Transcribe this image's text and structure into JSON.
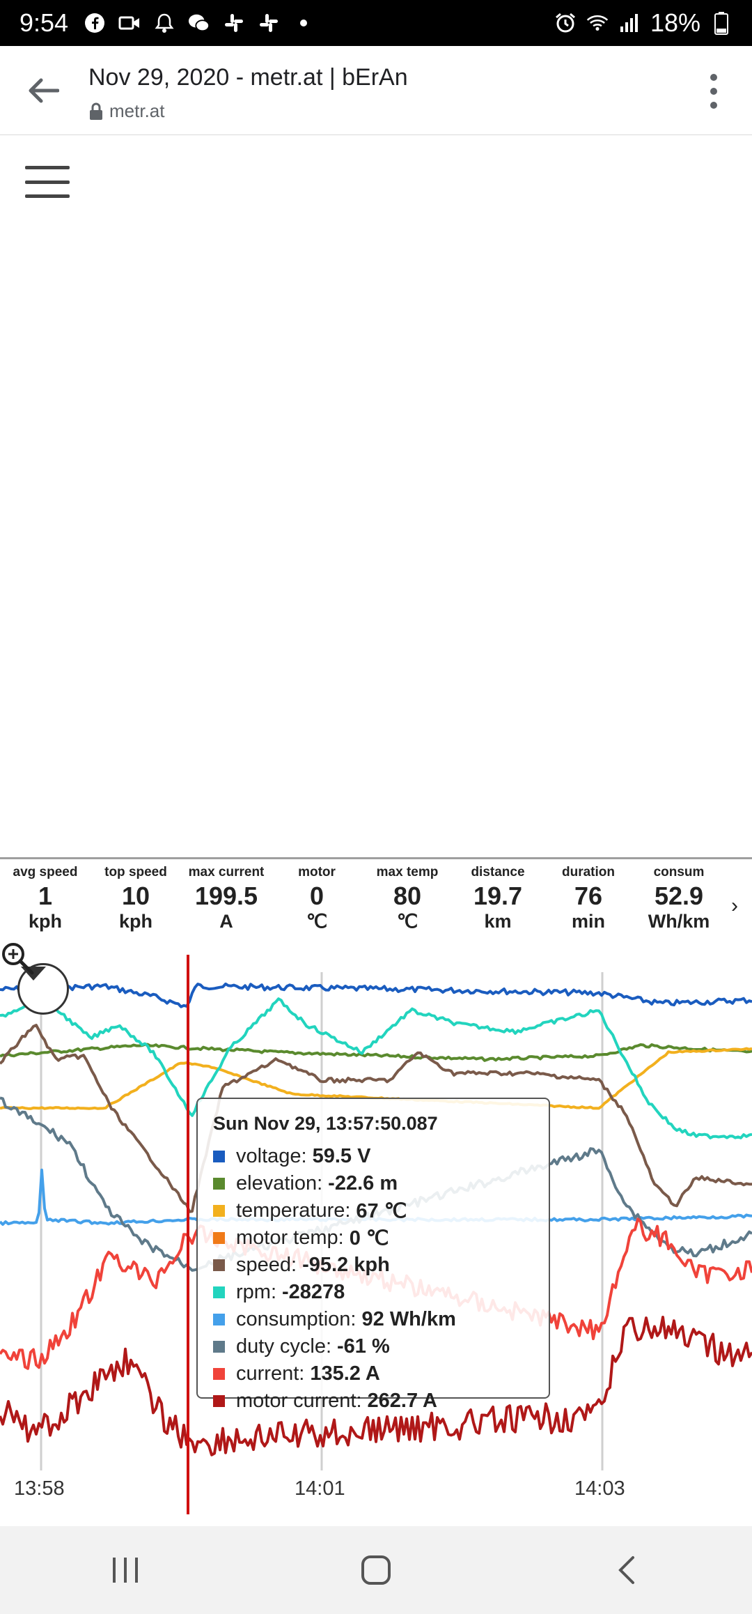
{
  "status_bar": {
    "time": "9:54",
    "battery": "18%",
    "icons": [
      "facebook-icon",
      "video-icon",
      "bell-icon",
      "wechat-icon",
      "slack-icon",
      "slack-icon",
      "dot-icon",
      "alarm-icon",
      "wifi-icon",
      "signal-icon",
      "battery-icon"
    ]
  },
  "browser": {
    "title": "Nov 29, 2020 - metr.at | bErAn",
    "url": "metr.at"
  },
  "stats": [
    {
      "label": "avg speed",
      "value": "1",
      "unit": "kph"
    },
    {
      "label": "top speed",
      "value": "10",
      "unit": "kph"
    },
    {
      "label": "max current",
      "value": "199.5",
      "unit": "A"
    },
    {
      "label": "motor",
      "value": "0",
      "unit": "℃"
    },
    {
      "label": "max temp",
      "value": "80",
      "unit": "℃"
    },
    {
      "label": "distance",
      "value": "19.7",
      "unit": "km"
    },
    {
      "label": "duration",
      "value": "76",
      "unit": "min"
    },
    {
      "label": "consum",
      "value": "52.9",
      "unit": "Wh/km"
    }
  ],
  "stats_next": "›",
  "tooltip": {
    "header": "Sun Nov 29, 13:57:50.087",
    "rows": [
      {
        "label": "voltage:",
        "value": "59.5 V",
        "color": "#1a5cbf"
      },
      {
        "label": "elevation:",
        "value": "-22.6 m",
        "color": "#5a8a2e"
      },
      {
        "label": "temperature:",
        "value": "67 ℃",
        "color": "#f2b01e"
      },
      {
        "label": "motor temp:",
        "value": "0 ℃",
        "color": "#f07a18"
      },
      {
        "label": "speed:",
        "value": "-95.2 kph",
        "color": "#7a5a4a"
      },
      {
        "label": "rpm:",
        "value": "-28278",
        "color": "#22d4be"
      },
      {
        "label": "consumption:",
        "value": "92 Wh/km",
        "color": "#44a0ea"
      },
      {
        "label": "duty cycle:",
        "value": "-61 %",
        "color": "#5f7a8a"
      },
      {
        "label": "current:",
        "value": "135.2 A",
        "color": "#f0433a"
      },
      {
        "label": "motor current:",
        "value": "262.7 A",
        "color": "#b01818"
      }
    ]
  },
  "chart": {
    "x_ticks": [
      "13:58",
      "14:01",
      "14:03"
    ],
    "cursor_color": "#d01010"
  }
}
